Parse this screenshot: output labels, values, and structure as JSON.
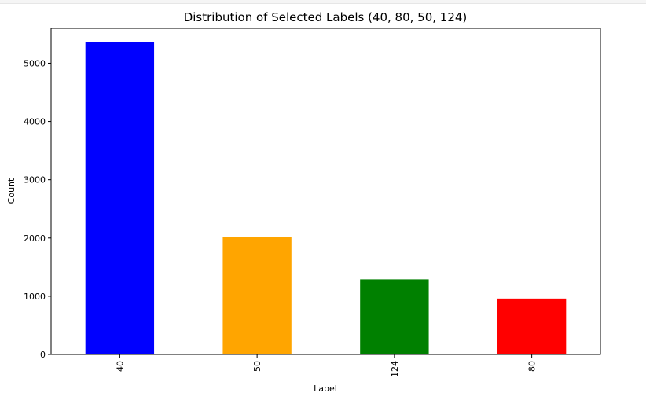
{
  "chart_data": {
    "type": "bar",
    "title": "Distribution of Selected Labels (40, 80, 50, 124)",
    "xlabel": "Label",
    "ylabel": "Count",
    "categories": [
      "40",
      "50",
      "124",
      "80"
    ],
    "values": [
      5360,
      2020,
      1290,
      960
    ],
    "colors": [
      "#0000ff",
      "#ffa500",
      "#008000",
      "#ff0000"
    ],
    "ylim": [
      0,
      5600
    ],
    "yticks": [
      "0",
      "1000",
      "2000",
      "3000",
      "4000",
      "5000"
    ],
    "ytick_values": [
      0,
      1000,
      2000,
      3000,
      4000,
      5000
    ],
    "grid": false,
    "legend": "none",
    "xtick_rotation": "vertical"
  }
}
